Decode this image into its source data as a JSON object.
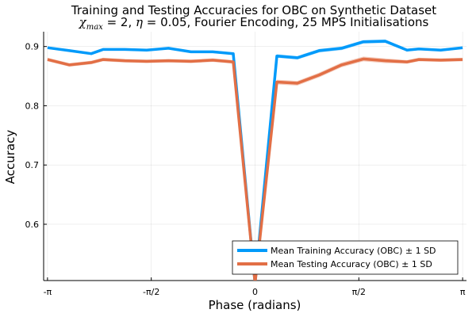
{
  "chart_data": {
    "type": "line",
    "title": "Training and Testing Accuracies for OBC on Synthetic Dataset",
    "subtitle": {
      "chi_label": "χ",
      "chi_subscript": "max",
      "chi_value": " = 2, ",
      "eta_label": "η",
      "eta_value": " = 0.05",
      "rest": ", Fourier Encoding, 25 MPS Initialisations"
    },
    "xlabel": "Phase (radians)",
    "ylabel": "Accuracy",
    "xlim": [
      -3.2,
      3.2
    ],
    "ylim": [
      0.505,
      0.925
    ],
    "grid": true,
    "legend_position": "bottom-right",
    "x_ticks": [
      {
        "value": -3.14159,
        "label": "-π"
      },
      {
        "value": -1.5708,
        "label": "-π/2"
      },
      {
        "value": 0,
        "label": "0"
      },
      {
        "value": 1.5708,
        "label": "π/2"
      },
      {
        "value": 3.14159,
        "label": "π"
      }
    ],
    "y_ticks": [
      {
        "value": 0.6,
        "label": "0.6"
      },
      {
        "value": 0.7,
        "label": "0.7"
      },
      {
        "value": 0.8,
        "label": "0.8"
      },
      {
        "value": 0.9,
        "label": "0.9"
      }
    ],
    "x": [
      -3.14159,
      -2.81,
      -2.48,
      -2.3,
      -1.97,
      -1.64,
      -1.31,
      -0.97,
      -0.64,
      -0.33,
      0.0,
      0.33,
      0.64,
      0.97,
      1.31,
      1.64,
      1.97,
      2.3,
      2.48,
      2.81,
      3.14159
    ],
    "series": [
      {
        "name": "Mean Training Accuracy (OBC) ± 1 SD",
        "color": "#009AFA",
        "values": [
          0.898,
          0.893,
          0.888,
          0.895,
          0.895,
          0.894,
          0.897,
          0.891,
          0.891,
          0.888,
          0.5,
          0.884,
          0.881,
          0.893,
          0.897,
          0.908,
          0.909,
          0.894,
          0.896,
          0.894,
          0.898
        ],
        "sd": [
          0.002,
          0.002,
          0.002,
          0.002,
          0.002,
          0.002,
          0.002,
          0.002,
          0.002,
          0.002,
          0.005,
          0.003,
          0.003,
          0.003,
          0.003,
          0.003,
          0.003,
          0.002,
          0.002,
          0.002,
          0.002
        ]
      },
      {
        "name": "Mean Testing Accuracy (OBC) ± 1 SD",
        "color": "#E26F46",
        "values": [
          0.878,
          0.869,
          0.873,
          0.878,
          0.876,
          0.875,
          0.876,
          0.875,
          0.877,
          0.874,
          0.5,
          0.84,
          0.838,
          0.852,
          0.869,
          0.879,
          0.876,
          0.874,
          0.878,
          0.877,
          0.878
        ],
        "sd": [
          0.003,
          0.003,
          0.003,
          0.003,
          0.003,
          0.003,
          0.003,
          0.003,
          0.003,
          0.003,
          0.005,
          0.004,
          0.004,
          0.004,
          0.004,
          0.004,
          0.004,
          0.003,
          0.003,
          0.003,
          0.003
        ]
      }
    ]
  }
}
